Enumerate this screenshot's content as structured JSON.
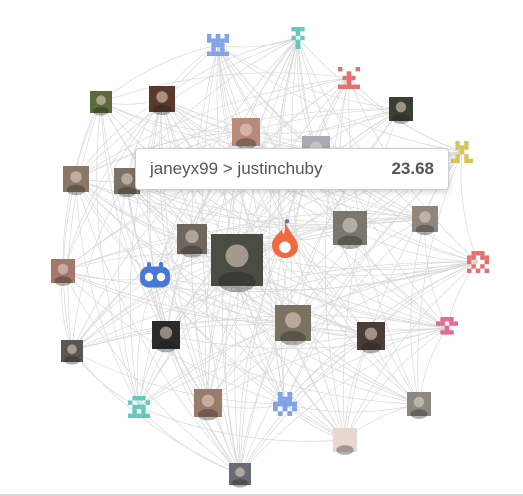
{
  "tooltip": {
    "edge_label": "janeyx99 > justinchuby",
    "weight": "23.68"
  },
  "palette": {
    "edge": "#d9d9d9",
    "fire": "#f0693f",
    "robot": "#4a78d6",
    "pink": "#e06a93",
    "teal": "#5fc9c0",
    "blue": "#7fa3e6",
    "red": "#e5706f",
    "gold": "#d8c25a"
  },
  "nodes": [
    {
      "id": "n-top-blue",
      "kind": "identicon",
      "color": "#7fa3e6"
    },
    {
      "id": "n-top-teal",
      "kind": "identicon",
      "color": "#5fc9c0"
    },
    {
      "id": "n-red-t",
      "kind": "identicon",
      "color": "#e5706f"
    },
    {
      "id": "n-bird",
      "kind": "photo",
      "color": "#5d6b3a"
    },
    {
      "id": "n-lamp",
      "kind": "photo",
      "color": "#5a3a2c"
    },
    {
      "id": "n-face-pink",
      "kind": "photo",
      "color": "#b98a7a"
    },
    {
      "id": "n-dark-photo",
      "kind": "photo",
      "color": "#3a3f33"
    },
    {
      "id": "n-gold",
      "kind": "identicon",
      "color": "#d8c25a"
    },
    {
      "id": "n-face-left",
      "kind": "photo",
      "color": "#8a7866"
    },
    {
      "id": "n-face-glasses",
      "kind": "photo",
      "color": "#7c7166"
    },
    {
      "id": "n-face-mid",
      "kind": "photo",
      "color": "#a8aab3"
    },
    {
      "id": "n-face-right-top",
      "kind": "photo",
      "color": "#8f8680"
    },
    {
      "id": "n-face-a",
      "kind": "photo",
      "color": "#6f675e"
    },
    {
      "id": "n-big-photo",
      "kind": "photo",
      "color": "#4b4c44"
    },
    {
      "id": "n-fire",
      "kind": "logo",
      "color": "#f0693f"
    },
    {
      "id": "n-face-b",
      "kind": "photo",
      "color": "#7a776e"
    },
    {
      "id": "n-woman",
      "kind": "photo",
      "color": "#a6776b"
    },
    {
      "id": "n-robot",
      "kind": "logo",
      "color": "#4a78d6"
    },
    {
      "id": "n-red-right",
      "kind": "identicon",
      "color": "#e5706f"
    },
    {
      "id": "n-penguin",
      "kind": "photo",
      "color": "#2a2a2a"
    },
    {
      "id": "n-cat",
      "kind": "photo",
      "color": "#7b7361"
    },
    {
      "id": "n-dark-right",
      "kind": "photo",
      "color": "#4a3c36"
    },
    {
      "id": "n-pink",
      "kind": "identicon",
      "color": "#e06a93"
    },
    {
      "id": "n-face-low-left",
      "kind": "photo",
      "color": "#5b5652"
    },
    {
      "id": "n-teal-low",
      "kind": "identicon",
      "color": "#5fc9c0"
    },
    {
      "id": "n-face-low",
      "kind": "photo",
      "color": "#9a7c6c"
    },
    {
      "id": "n-blue-low",
      "kind": "identicon",
      "color": "#7fa3e6"
    },
    {
      "id": "n-dog",
      "kind": "photo",
      "color": "#8a8880"
    },
    {
      "id": "n-anime",
      "kind": "photo",
      "color": "#e8d7cf"
    },
    {
      "id": "n-bottom",
      "kind": "photo",
      "color": "#6a6a73"
    }
  ]
}
